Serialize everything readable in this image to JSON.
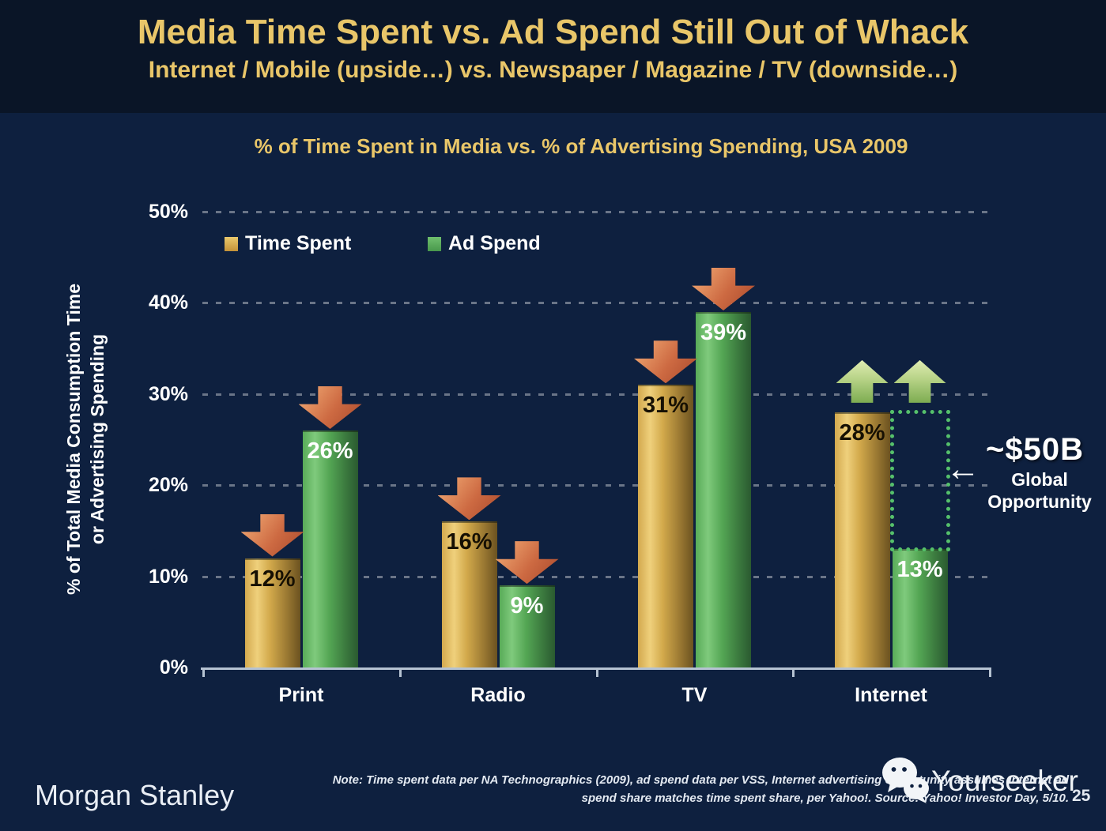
{
  "header": {
    "title": "Media Time Spent vs. Ad Spend Still Out of Whack",
    "subtitle": "Internet / Mobile (upside…) vs. Newspaper / Magazine / TV (downside…)"
  },
  "chart_data": {
    "type": "bar",
    "title": "% of Time Spent in Media vs. % of Advertising Spending, USA 2009",
    "categories": [
      "Print",
      "Radio",
      "TV",
      "Internet"
    ],
    "series": [
      {
        "name": "Time Spent",
        "values": [
          12,
          16,
          31,
          28
        ],
        "color": "#d9ab4c"
      },
      {
        "name": "Ad Spend",
        "values": [
          26,
          9,
          39,
          13
        ],
        "color": "#5aa85c"
      }
    ],
    "bar_labels": [
      [
        "12%",
        "26%"
      ],
      [
        "16%",
        "9%"
      ],
      [
        "31%",
        "39%"
      ],
      [
        "28%",
        "13%"
      ]
    ],
    "trend_arrows": [
      [
        "down",
        "down"
      ],
      [
        "down",
        "down"
      ],
      [
        "down",
        "down"
      ],
      [
        "up",
        "up"
      ]
    ],
    "ylabel_line1": "% of Total Media Consumption Time",
    "ylabel_line2": "or Advertising Spending",
    "ylim": [
      0,
      50
    ],
    "yticks": [
      "0%",
      "10%",
      "20%",
      "30%",
      "40%",
      "50%"
    ],
    "grid": "dashed horizontal white",
    "legend_position": "top-left inside plot",
    "opportunity_box": {
      "category": "Internet",
      "series": "Ad Spend",
      "from_value": 13,
      "to_value": 28
    },
    "annotation": {
      "arrow_glyph": "←",
      "value": "~$50B",
      "line1": "Global",
      "line2": "Opportunity"
    },
    "colors": {
      "background": "#0e203f",
      "header_band": "#0a1527",
      "accent_gold_text": "#e9c669",
      "down_arrow": "#cd6a42",
      "up_arrow": "#b6d286",
      "opportunity_box_border": "#55c06b",
      "axis": "#b6c3d2"
    }
  },
  "footer": {
    "brand": "Morgan Stanley",
    "note_line1": "Note: Time spent data per NA Technographics (2009), ad spend data per VSS, Internet advertising opportunity assumes Internet ad",
    "note_line2": "spend share matches time spent share, per Yahoo!. Source: Yahoo! Investor Day, 5/10.",
    "watermark": "Yourseeker",
    "page": "25"
  }
}
